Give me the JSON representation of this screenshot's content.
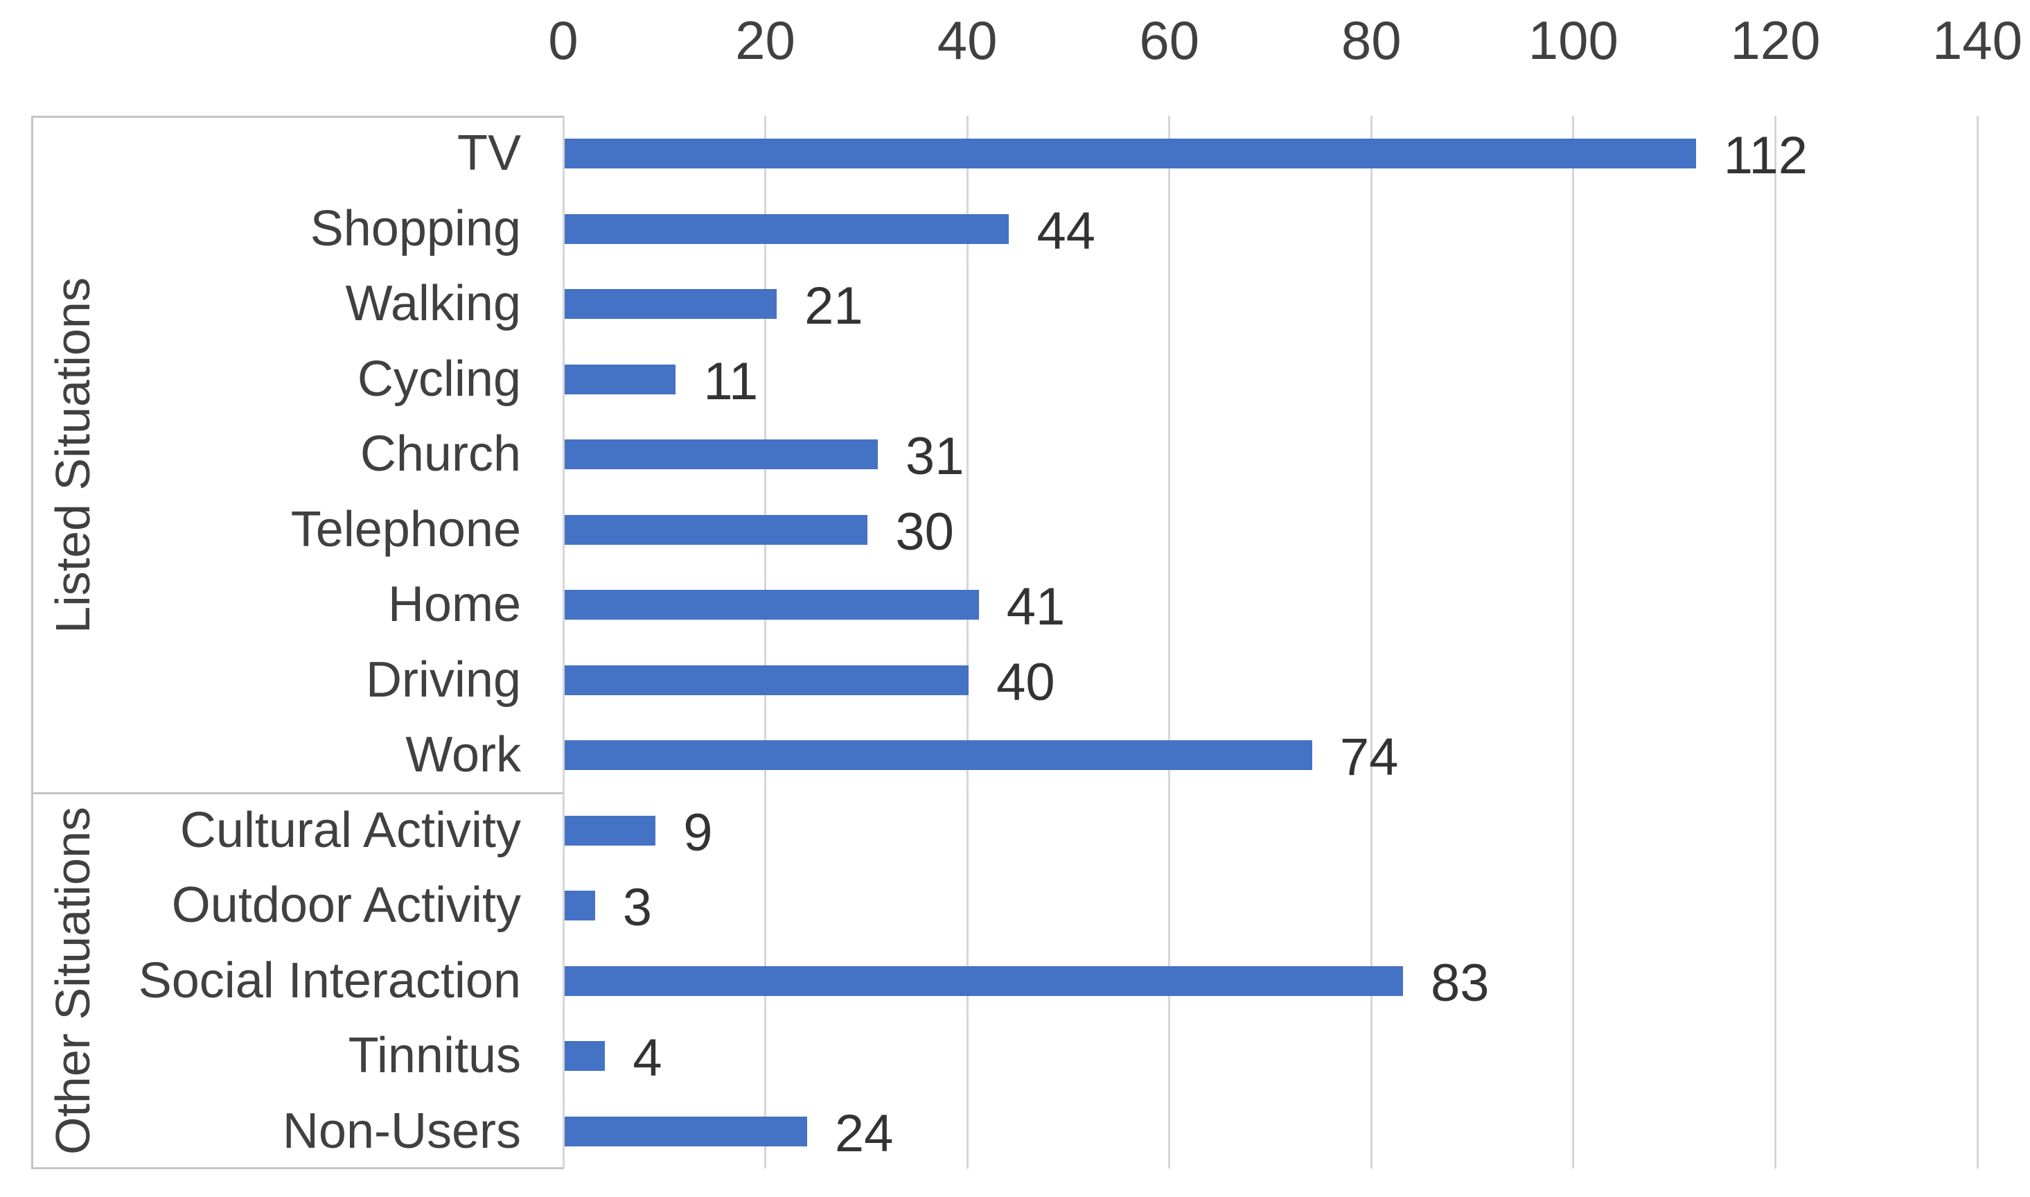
{
  "chart_data": {
    "type": "bar",
    "orientation": "horizontal",
    "title": "",
    "xlabel": "",
    "ylabel": "",
    "x_axis": {
      "min": 0,
      "max": 140,
      "step": 20,
      "tick_labels": [
        "0",
        "20",
        "40",
        "60",
        "80",
        "100",
        "120",
        "140"
      ],
      "position": "top"
    },
    "grid": true,
    "legend": false,
    "value_labels_shown": true,
    "groups": [
      {
        "label": "Listed Situations",
        "categories": [
          "TV",
          "Shopping",
          "Walking",
          "Cycling",
          "Church",
          "Telephone",
          "Home",
          "Driving",
          "Work"
        ],
        "values": [
          112,
          44,
          21,
          11,
          31,
          30,
          41,
          40,
          74
        ]
      },
      {
        "label": "Other Situations",
        "categories": [
          "Cultural Activity",
          "Outdoor Activity",
          "Social Interaction",
          "Tinnitus",
          "Non-Users"
        ],
        "values": [
          9,
          3,
          83,
          4,
          24
        ]
      }
    ]
  },
  "colors": {
    "bar": "#4472C4",
    "gridline": "#D6D6D6",
    "axis_box_border": "#C4C4C4",
    "text": "#404040"
  }
}
